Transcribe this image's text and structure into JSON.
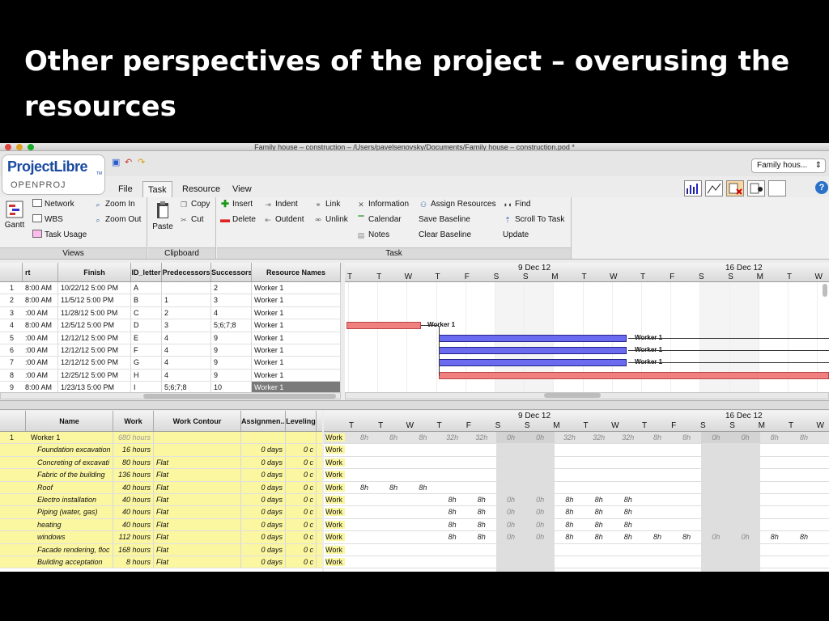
{
  "slide": {
    "title": "Other perspectives of the project – overusing the resources"
  },
  "window": {
    "title": "Family house – construction – /Users/pavelsenovsky/Documents/Family house – construction.pod *"
  },
  "logo": {
    "main": "ProjectLibre",
    "tm": "TM",
    "sub": "OPENPROJ"
  },
  "tabs": [
    "File",
    "Task",
    "Resource",
    "View"
  ],
  "project_select": "Family hous...",
  "ribbon": {
    "views": {
      "label": "Views",
      "gantt": "Gantt",
      "network": "Network",
      "wbs": "WBS",
      "task_usage": "Task Usage",
      "zoom_in": "Zoom In",
      "zoom_out": "Zoom Out"
    },
    "clipboard": {
      "label": "Clipboard",
      "paste": "Paste",
      "copy": "Copy",
      "cut": "Cut"
    },
    "task": {
      "label": "Task",
      "insert": "Insert",
      "delete": "Delete",
      "indent": "Indent",
      "outdent": "Outdent",
      "link": "Link",
      "unlink": "Unlink",
      "information": "Information",
      "calendar": "Calendar",
      "notes": "Notes",
      "assign_resources": "Assign Resources",
      "save_baseline": "Save Baseline",
      "clear_baseline": "Clear Baseline",
      "find": "Find",
      "scroll_to_task": "Scroll To Task",
      "update": "Update"
    }
  },
  "task_table": {
    "columns": [
      "rt",
      "Finish",
      "ID_letter",
      "Predecessors",
      "Successors",
      "Resource Names"
    ],
    "rows": [
      {
        "n": "1",
        "start": "8:00 AM",
        "finish": "10/22/12 5:00 PM",
        "id": "A",
        "pred": "",
        "succ": "2",
        "res": "Worker 1"
      },
      {
        "n": "2",
        "start": "8:00 AM",
        "finish": "11/5/12 5:00 PM",
        "id": "B",
        "pred": "1",
        "succ": "3",
        "res": "Worker 1"
      },
      {
        "n": "3",
        "start": ":00 AM",
        "finish": "11/28/12 5:00 PM",
        "id": "C",
        "pred": "2",
        "succ": "4",
        "res": "Worker 1"
      },
      {
        "n": "4",
        "start": "8:00 AM",
        "finish": "12/5/12 5:00 PM",
        "id": "D",
        "pred": "3",
        "succ": "5;6;7;8",
        "res": "Worker 1"
      },
      {
        "n": "5",
        "start": ":00 AM",
        "finish": "12/12/12 5:00 PM",
        "id": "E",
        "pred": "4",
        "succ": "9",
        "res": "Worker 1"
      },
      {
        "n": "6",
        "start": ":00 AM",
        "finish": "12/12/12 5:00 PM",
        "id": "F",
        "pred": "4",
        "succ": "9",
        "res": "Worker 1"
      },
      {
        "n": "7",
        "start": ":00 AM",
        "finish": "12/12/12 5:00 PM",
        "id": "G",
        "pred": "4",
        "succ": "9",
        "res": "Worker 1"
      },
      {
        "n": "8",
        "start": ":00 AM",
        "finish": "12/25/12 5:00 PM",
        "id": "H",
        "pred": "4",
        "succ": "9",
        "res": "Worker 1"
      },
      {
        "n": "9",
        "start": "8:00 AM",
        "finish": "1/23/13 5:00 PM",
        "id": "I",
        "pred": "5;6;7;8",
        "succ": "10",
        "res": "Worker 1"
      }
    ]
  },
  "timescale": {
    "weeks": [
      "9 Dec 12",
      "16 Dec 12"
    ],
    "days": [
      "T",
      "T",
      "W",
      "T",
      "F",
      "S",
      "S",
      "M",
      "T",
      "W",
      "T",
      "F",
      "S",
      "S",
      "M",
      "T",
      "W"
    ]
  },
  "gantt_labels": {
    "bar1": "Worker 1",
    "bar2": "Worker 1",
    "bar3": "Worker 1",
    "bar4": "Worker 1"
  },
  "usage_table": {
    "columns": [
      "Name",
      "Work",
      "Work Contour",
      "Assignmen...",
      "Leveling"
    ],
    "rows": [
      {
        "n": "1",
        "name": "Worker 1",
        "work": "680 hours",
        "contour": "",
        "assign": "",
        "lev": "",
        "kind": "resource"
      },
      {
        "n": "",
        "name": "Foundation excavation",
        "work": "16 hours",
        "contour": "",
        "assign": "0 days",
        "lev": "0 c",
        "kind": "task"
      },
      {
        "n": "",
        "name": "Concreting of excavati",
        "work": "80 hours",
        "contour": "Flat",
        "assign": "0 days",
        "lev": "0 c",
        "kind": "task"
      },
      {
        "n": "",
        "name": "Fabric of the building",
        "work": "136 hours",
        "contour": "Flat",
        "assign": "0 days",
        "lev": "0 c",
        "kind": "task"
      },
      {
        "n": "",
        "name": "Roof",
        "work": "40 hours",
        "contour": "Flat",
        "assign": "0 days",
        "lev": "0 c",
        "kind": "task"
      },
      {
        "n": "",
        "name": "Electro installation",
        "work": "40 hours",
        "contour": "Flat",
        "assign": "0 days",
        "lev": "0 c",
        "kind": "task"
      },
      {
        "n": "",
        "name": "Piping (water, gas)",
        "work": "40 hours",
        "contour": "Flat",
        "assign": "0 days",
        "lev": "0 c",
        "kind": "task"
      },
      {
        "n": "",
        "name": "heating",
        "work": "40 hours",
        "contour": "Flat",
        "assign": "0 days",
        "lev": "0 c",
        "kind": "task"
      },
      {
        "n": "",
        "name": "windows",
        "work": "112 hours",
        "contour": "Flat",
        "assign": "0 days",
        "lev": "0 c",
        "kind": "task"
      },
      {
        "n": "",
        "name": "Facade rendering, floc",
        "work": "168 hours",
        "contour": "Flat",
        "assign": "0 days",
        "lev": "0 c",
        "kind": "task"
      },
      {
        "n": "",
        "name": "Building acceptation",
        "work": "8 hours",
        "contour": "Flat",
        "assign": "0 days",
        "lev": "0 c",
        "kind": "task"
      }
    ]
  },
  "usage_grid": {
    "label": "Work",
    "rows": [
      [
        "8h",
        "8h",
        "8h",
        "32h",
        "32h",
        "0h",
        "0h",
        "32h",
        "32h",
        "32h",
        "8h",
        "8h",
        "0h",
        "0h",
        "8h",
        "8h"
      ],
      [
        "",
        "",
        "",
        "",
        "",
        "",
        "",
        "",
        "",
        "",
        "",
        "",
        "",
        "",
        "",
        ""
      ],
      [
        "",
        "",
        "",
        "",
        "",
        "",
        "",
        "",
        "",
        "",
        "",
        "",
        "",
        "",
        "",
        ""
      ],
      [
        "",
        "",
        "",
        "",
        "",
        "",
        "",
        "",
        "",
        "",
        "",
        "",
        "",
        "",
        "",
        ""
      ],
      [
        "8h",
        "8h",
        "8h",
        "",
        "",
        "",
        "",
        "",
        "",
        "",
        "",
        "",
        "",
        "",
        "",
        ""
      ],
      [
        "",
        "",
        "",
        "8h",
        "8h",
        "0h",
        "0h",
        "8h",
        "8h",
        "8h",
        "",
        "",
        "",
        "",
        "",
        ""
      ],
      [
        "",
        "",
        "",
        "8h",
        "8h",
        "0h",
        "0h",
        "8h",
        "8h",
        "8h",
        "",
        "",
        "",
        "",
        "",
        ""
      ],
      [
        "",
        "",
        "",
        "8h",
        "8h",
        "0h",
        "0h",
        "8h",
        "8h",
        "8h",
        "",
        "",
        "",
        "",
        "",
        ""
      ],
      [
        "",
        "",
        "",
        "8h",
        "8h",
        "0h",
        "0h",
        "8h",
        "8h",
        "8h",
        "8h",
        "8h",
        "0h",
        "0h",
        "8h",
        "8h"
      ],
      [
        "",
        "",
        "",
        "",
        "",
        "",
        "",
        "",
        "",
        "",
        "",
        "",
        "",
        "",
        "",
        ""
      ],
      [
        "",
        "",
        "",
        "",
        "",
        "",
        "",
        "",
        "",
        "",
        "",
        "",
        "",
        "",
        "",
        ""
      ]
    ]
  },
  "colors": {
    "critical": "#f08080",
    "task_bar": "#6b6bf0",
    "resource_row": "#fbf6a0"
  }
}
